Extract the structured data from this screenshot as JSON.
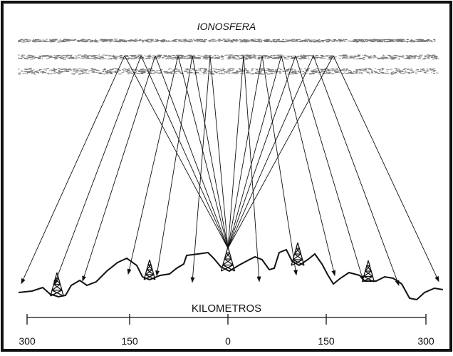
{
  "title": "IONOSFERA",
  "scale": {
    "label": "KILOMETROS",
    "ticks": [
      300,
      150,
      0,
      150,
      300
    ]
  }
}
